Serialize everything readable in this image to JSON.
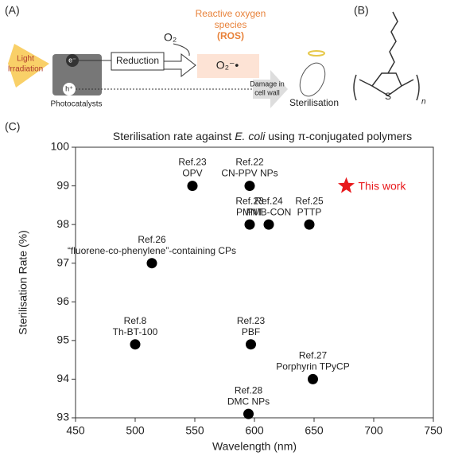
{
  "schematic": {
    "panel_a": "(A)",
    "panel_b": "(B)",
    "panel_c": "(C)",
    "light": [
      "Light",
      "Irradiation"
    ],
    "electron": "e⁻",
    "hole": "h⁺",
    "photocatalysts": "Photocatalysts",
    "reduction": "Reduction",
    "o2": "O₂",
    "ros": [
      "Reactive oxygen",
      "species"
    ],
    "ros_abbr": "(ROS)",
    "superoxide": "O₂⁻•",
    "damage": [
      "Damage in",
      "cell wall"
    ],
    "sterilisation": "Sterilisation",
    "sulfur": "S",
    "n": "n"
  },
  "chart_data": {
    "type": "scatter",
    "title": [
      "Sterilisation rate against ",
      "E. coli",
      " using π-conjugated polymers"
    ],
    "x_label": "Wavelength (nm)",
    "y_label": "Sterilisation Rate (%)",
    "xlim": [
      450,
      750
    ],
    "xticks": [
      450,
      500,
      550,
      600,
      650,
      700,
      750
    ],
    "ylim": [
      93,
      100
    ],
    "yticks": [
      93,
      94,
      95,
      96,
      97,
      98,
      99,
      100
    ],
    "series": [
      {
        "color": "#000000",
        "marker": "circle",
        "x": [
          548,
          596,
          596,
          612,
          646,
          514,
          500,
          597,
          649,
          595
        ],
        "values": [
          99,
          99,
          98,
          98,
          98,
          97,
          94.9,
          94.9,
          94,
          93.1
        ],
        "labels": [
          [
            "Ref.23",
            "OPV"
          ],
          [
            "Ref.22",
            "CN-PPV NPs"
          ],
          [
            "Ref.23",
            "PMNT"
          ],
          [
            "Ref.24",
            "PMB-CON"
          ],
          [
            "Ref.25",
            "PTTP"
          ],
          [
            "Ref.26",
            "“fluorene-co-phenylene”-containing CPs"
          ],
          [
            "Ref.8",
            "Th-BT-100"
          ],
          [
            "Ref.23",
            "PBF"
          ],
          [
            "Ref.27",
            "Porphyrin TPyCP"
          ],
          [
            "Ref.28",
            "DMC NPs"
          ]
        ]
      },
      {
        "name": "This work",
        "color": "#e8191c",
        "marker": "star",
        "x": [
          677
        ],
        "values": [
          99
        ]
      }
    ]
  }
}
